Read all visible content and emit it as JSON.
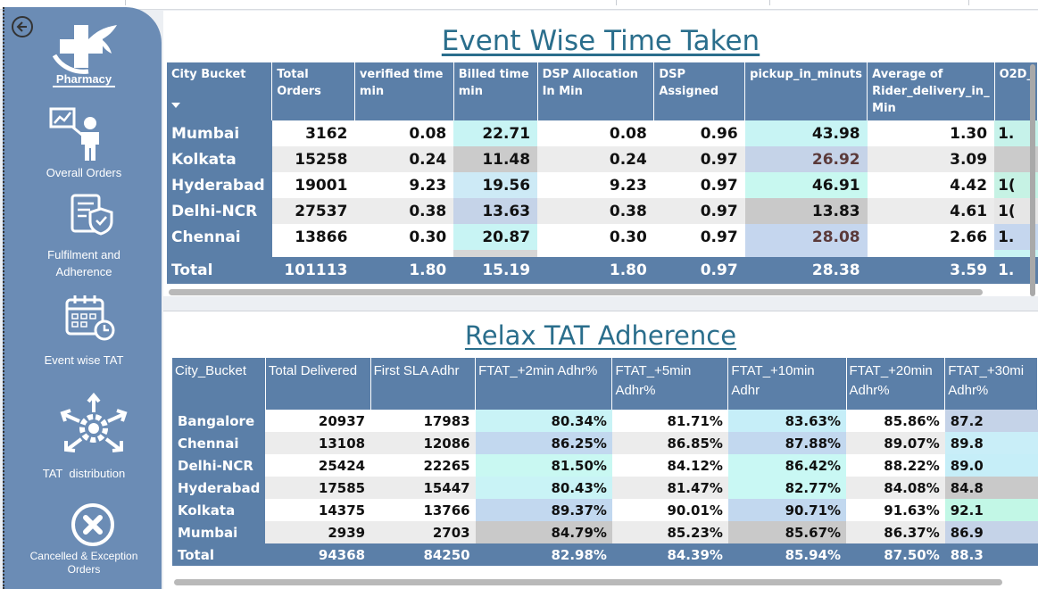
{
  "sidebar": {
    "items": [
      {
        "label": "Pharmacy",
        "icon": "pharmacy-cross-icon"
      },
      {
        "label": "Overall Orders",
        "icon": "presenter-chart-icon"
      },
      {
        "label": "Fulfilment and",
        "label2": "Adherence",
        "icon": "shield-document-icon"
      },
      {
        "label": "Event wise TAT",
        "icon": "calendar-clock-icon"
      },
      {
        "label": "TAT  distribution",
        "icon": "gear-arrows-icon"
      },
      {
        "label": "Cancelled & Exception",
        "label2": "Orders",
        "icon": "cancel-circle-icon"
      }
    ]
  },
  "event_table": {
    "title": "Event Wise Time Taken",
    "headers": [
      "City Bucket",
      "Total Orders",
      "verified time min",
      "Billed time min",
      "DSP Allocation In Min",
      "DSP Assigned",
      "pickup_in_minuts",
      "Average of Rider_delivery_in_ Min",
      "O2D_"
    ],
    "rows": [
      {
        "city": "Mumbai",
        "v": [
          "3162",
          "0.08",
          "22.71",
          "0.08",
          "0.96",
          "43.98",
          "1.30",
          "1."
        ]
      },
      {
        "city": "Kolkata",
        "v": [
          "15258",
          "0.24",
          "11.48",
          "0.24",
          "0.97",
          "26.92",
          "3.09",
          ""
        ]
      },
      {
        "city": "Hyderabad",
        "v": [
          "19001",
          "9.23",
          "19.56",
          "9.23",
          "0.97",
          "46.91",
          "4.42",
          "1("
        ]
      },
      {
        "city": "Delhi-NCR",
        "v": [
          "27537",
          "0.38",
          "13.63",
          "0.38",
          "0.97",
          "13.83",
          "4.61",
          "1("
        ]
      },
      {
        "city": "Chennai",
        "v": [
          "13866",
          "0.30",
          "20.87",
          "0.30",
          "0.97",
          "28.08",
          "2.66",
          "1."
        ]
      }
    ],
    "total": {
      "city": "Total",
      "v": [
        "101113",
        "1.80",
        "15.19",
        "1.80",
        "0.97",
        "28.38",
        "3.59",
        "1."
      ]
    }
  },
  "tat_table": {
    "title": "Relax TAT Adherence",
    "headers": [
      "City_Bucket",
      "Total Delivered",
      "First SLA Adhr",
      "FTAT_+2min Adhr%",
      "FTAT_+5min Adhr%",
      "FTAT_+10min Adhr",
      "FTAT_+20min Adhr%",
      "FTAT_+30mi Adhr%"
    ],
    "rows": [
      {
        "city": "Bangalore",
        "v": [
          "20937",
          "17983",
          "80.34%",
          "81.71%",
          "83.63%",
          "85.86%",
          "87.2"
        ]
      },
      {
        "city": "Chennai",
        "v": [
          "13108",
          "12086",
          "86.25%",
          "86.85%",
          "87.88%",
          "89.07%",
          "89.8"
        ]
      },
      {
        "city": "Delhi-NCR",
        "v": [
          "25424",
          "22265",
          "81.50%",
          "84.12%",
          "86.42%",
          "88.22%",
          "89.0"
        ]
      },
      {
        "city": "Hyderabad",
        "v": [
          "17585",
          "15447",
          "80.43%",
          "81.47%",
          "82.77%",
          "84.08%",
          "84.8"
        ]
      },
      {
        "city": "Kolkata",
        "v": [
          "14375",
          "13766",
          "89.37%",
          "90.01%",
          "90.71%",
          "91.63%",
          "92.1"
        ]
      },
      {
        "city": "Mumbai",
        "v": [
          "2939",
          "2703",
          "84.79%",
          "85.23%",
          "85.67%",
          "86.37%",
          "86.9"
        ]
      }
    ],
    "total": {
      "city": "Total",
      "v": [
        "94368",
        "84250",
        "82.98%",
        "84.39%",
        "85.94%",
        "87.50%",
        "88.3"
      ]
    }
  },
  "colors": {
    "nav_bg": "#6b8cb5",
    "header_bg": "#5b7fa8",
    "title": "#2a6e8c",
    "good": "#1e7a3c",
    "bad": "#a11a2a"
  }
}
